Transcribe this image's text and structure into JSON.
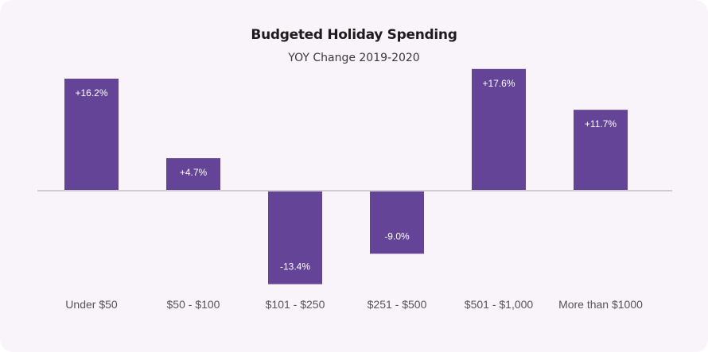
{
  "chart_data": {
    "type": "bar",
    "title": "Budgeted Holiday Spending",
    "subtitle": "YOY Change 2019-2020",
    "xlabel": "",
    "ylabel": "",
    "categories": [
      "Under $50",
      "$50 - $100",
      "$101 - $250",
      "$251 - $500",
      "$501 - $1,000",
      "More than $1000"
    ],
    "values": [
      16.2,
      4.7,
      -13.4,
      -9.0,
      17.6,
      11.7
    ],
    "data_labels": [
      "+16.2%",
      "+4.7%",
      "-13.4%",
      "-9.0%",
      "+17.6%",
      "+11.7%"
    ],
    "ylim": [
      -13.4,
      17.6
    ],
    "grid": false,
    "legend": "none",
    "colors": {
      "bar": "#634497",
      "baseline": "#d0cdd2",
      "background": "#f9f4f9"
    }
  }
}
